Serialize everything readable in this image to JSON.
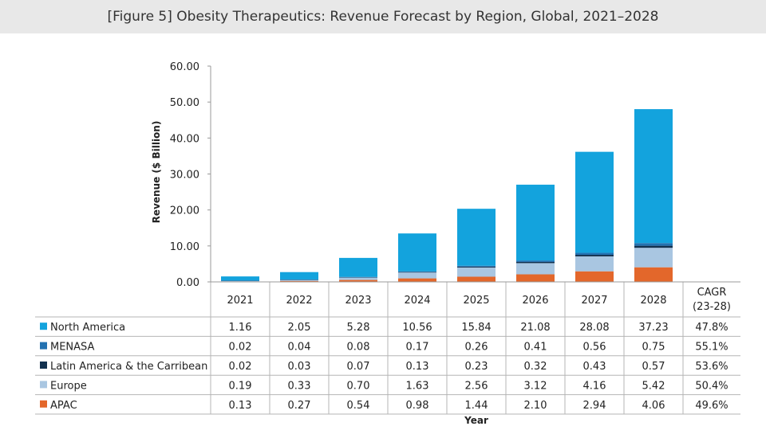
{
  "title": "[Figure 5] Obesity Therapeutics: Revenue Forecast by Region, Global, 2021–2028",
  "chart_data": {
    "type": "bar",
    "stacked": true,
    "title": "[Figure 5] Obesity Therapeutics: Revenue Forecast by Region, Global, 2021–2028",
    "ylabel": "Revenue ($ Billion)",
    "xlabel": "Year",
    "ylim": [
      0,
      60
    ],
    "yticks": [
      "0.00",
      "10.00",
      "20.00",
      "30.00",
      "40.00",
      "50.00",
      "60.00"
    ],
    "categories": [
      "2021",
      "2022",
      "2023",
      "2024",
      "2025",
      "2026",
      "2027",
      "2028"
    ],
    "cagr_header": [
      "CAGR",
      "(23-28)"
    ],
    "series": [
      {
        "name": "North America",
        "color": "#13a3dd",
        "labels": [
          "1.16",
          "2.05",
          "5.28",
          "10.56",
          "15.84",
          "21.08",
          "28.08",
          "37.23"
        ],
        "values": [
          1.16,
          2.05,
          5.28,
          10.56,
          15.84,
          21.08,
          28.08,
          37.23
        ],
        "cagr": "47.8%"
      },
      {
        "name": "MENASA",
        "color": "#2472b1",
        "labels": [
          "0.02",
          "0.04",
          "0.08",
          "0.17",
          "0.26",
          "0.41",
          "0.56",
          "0.75"
        ],
        "values": [
          0.02,
          0.04,
          0.08,
          0.17,
          0.26,
          0.41,
          0.56,
          0.75
        ],
        "cagr": "55.1%"
      },
      {
        "name": "Latin America & the Carribean",
        "color": "#12314f",
        "labels": [
          "0.02",
          "0.03",
          "0.07",
          "0.13",
          "0.23",
          "0.32",
          "0.43",
          "0.57"
        ],
        "values": [
          0.02,
          0.03,
          0.07,
          0.13,
          0.23,
          0.32,
          0.43,
          0.57
        ],
        "cagr": "53.6%"
      },
      {
        "name": "Europe",
        "color": "#a9c6e1",
        "labels": [
          "0.19",
          "0.33",
          "0.70",
          "1.63",
          "2.56",
          "3.12",
          "4.16",
          "5.42"
        ],
        "values": [
          0.19,
          0.33,
          0.7,
          1.63,
          2.56,
          3.12,
          4.16,
          5.42
        ],
        "cagr": "50.4%"
      },
      {
        "name": "APAC",
        "color": "#e3672b",
        "labels": [
          "0.13",
          "0.27",
          "0.54",
          "0.98",
          "1.44",
          "2.10",
          "2.94",
          "4.06"
        ],
        "values": [
          0.13,
          0.27,
          0.54,
          0.98,
          1.44,
          2.1,
          2.94,
          4.06
        ],
        "cagr": "49.6%"
      }
    ]
  }
}
